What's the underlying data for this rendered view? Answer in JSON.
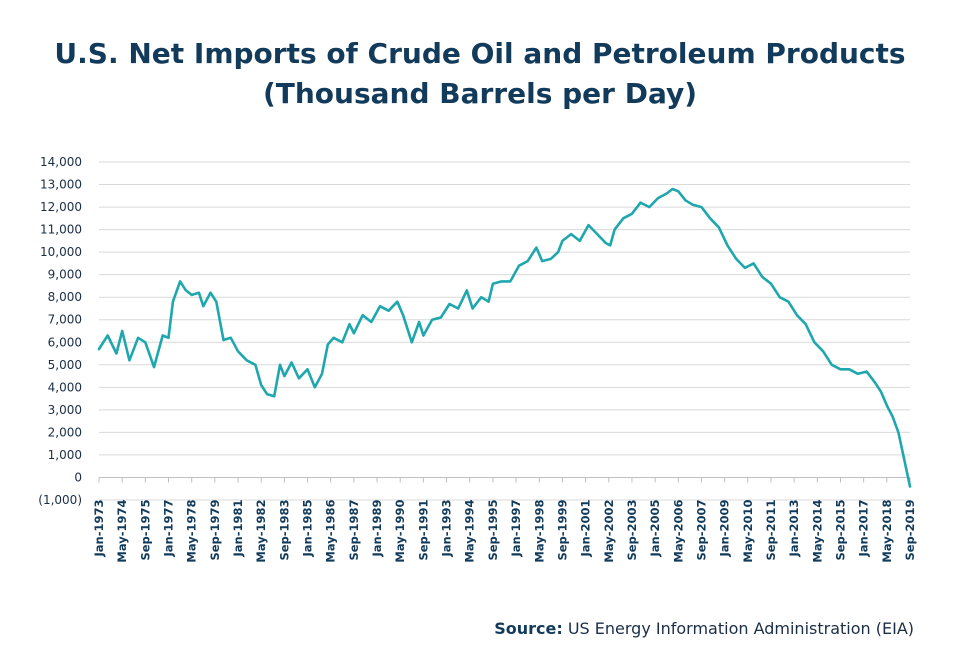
{
  "chart_data": {
    "type": "line",
    "title_line1": "U.S. Net Imports of Crude Oil and Petroleum Products",
    "title_line2": "(Thousand Barrels per Day)",
    "xlabel": "",
    "ylabel": "",
    "ylim": [
      -1000,
      14000
    ],
    "yticks": [
      14000,
      13000,
      12000,
      11000,
      10000,
      9000,
      8000,
      7000,
      6000,
      5000,
      4000,
      3000,
      2000,
      1000,
      0,
      -1000
    ],
    "ytick_labels": [
      "14,000",
      "13,000",
      "12,000",
      "11,000",
      "10,000",
      "9,000",
      "8,000",
      "7,000",
      "6,000",
      "5,000",
      "4,000",
      "3,000",
      "2,000",
      "1,000",
      "0",
      "(1,000)"
    ],
    "xticks": [
      "Jan-1973",
      "May-1974",
      "Sep-1975",
      "Jan-1977",
      "May-1978",
      "Sep-1979",
      "Jan-1981",
      "May-1982",
      "Sep-1983",
      "Jan-1985",
      "May-1986",
      "Sep-1987",
      "Jan-1989",
      "May-1990",
      "Sep-1991",
      "Jan-1993",
      "May-1994",
      "Sep-1995",
      "Jan-1997",
      "May-1998",
      "Sep-1999",
      "Jan-2001",
      "May-2002",
      "Sep-2003",
      "Jan-2005",
      "May-2006",
      "Sep-2007",
      "Jan-2009",
      "May-2010",
      "Sep-2011",
      "Jan-2013",
      "May-2014",
      "Sep-2015",
      "Jan-2017",
      "May-2018",
      "Sep-2019"
    ],
    "grid": true,
    "line_color": "#1fa7ae",
    "series": [
      {
        "x": [
          "1973-01",
          "1973-07",
          "1974-01",
          "1974-05",
          "1974-10",
          "1975-04",
          "1975-09",
          "1976-03",
          "1976-09",
          "1977-01",
          "1977-04",
          "1977-09",
          "1978-01",
          "1978-05",
          "1978-10",
          "1979-01",
          "1979-06",
          "1979-10",
          "1980-03",
          "1980-08",
          "1981-01",
          "1981-07",
          "1982-01",
          "1982-05",
          "1982-09",
          "1983-02",
          "1983-06",
          "1983-09",
          "1984-02",
          "1984-07",
          "1985-01",
          "1985-06",
          "1985-11",
          "1986-03",
          "1986-07",
          "1987-01",
          "1987-06",
          "1987-09",
          "1988-03",
          "1988-09",
          "1989-03",
          "1989-09",
          "1990-03",
          "1990-07",
          "1991-01",
          "1991-06",
          "1991-09",
          "1992-03",
          "1992-09",
          "1993-03",
          "1993-09",
          "1994-03",
          "1994-07",
          "1995-01",
          "1995-06",
          "1995-09",
          "1996-03",
          "1996-09",
          "1997-03",
          "1997-09",
          "1998-03",
          "1998-07",
          "1999-01",
          "1999-06",
          "1999-09",
          "2000-03",
          "2000-09",
          "2001-03",
          "2001-09",
          "2002-03",
          "2002-06",
          "2002-09",
          "2003-03",
          "2003-09",
          "2004-03",
          "2004-09",
          "2005-03",
          "2005-09",
          "2006-01",
          "2006-05",
          "2006-10",
          "2007-03",
          "2007-09",
          "2008-03",
          "2008-09",
          "2009-03",
          "2009-09",
          "2010-03",
          "2010-09",
          "2011-03",
          "2011-09",
          "2012-03",
          "2012-09",
          "2013-03",
          "2013-09",
          "2014-03",
          "2014-09",
          "2015-03",
          "2015-09",
          "2016-03",
          "2016-09",
          "2017-03",
          "2017-09",
          "2018-01",
          "2018-05",
          "2018-09",
          "2019-01",
          "2019-05",
          "2019-09"
        ],
        "values": [
          5700,
          6300,
          5500,
          6500,
          5200,
          6200,
          6000,
          4900,
          6300,
          6200,
          7800,
          8700,
          8300,
          8100,
          8200,
          7600,
          8200,
          7800,
          6100,
          6200,
          5600,
          5200,
          5000,
          4100,
          3700,
          3600,
          5000,
          4500,
          5100,
          4400,
          4800,
          4000,
          4600,
          5900,
          6200,
          6000,
          6800,
          6400,
          7200,
          6900,
          7600,
          7400,
          7800,
          7200,
          6000,
          6900,
          6300,
          7000,
          7100,
          7700,
          7500,
          8300,
          7500,
          8000,
          7800,
          8600,
          8700,
          8700,
          9400,
          9600,
          10200,
          9600,
          9700,
          10000,
          10500,
          10800,
          10500,
          11200,
          10800,
          10400,
          10300,
          11000,
          11500,
          11700,
          12200,
          12000,
          12400,
          12600,
          12800,
          12700,
          12300,
          12100,
          12000,
          11500,
          11100,
          10300,
          9700,
          9300,
          9500,
          8900,
          8600,
          8000,
          7800,
          7200,
          6800,
          6000,
          5600,
          5000,
          4800,
          4800,
          4600,
          4700,
          4200,
          3800,
          3200,
          2700,
          2000,
          800,
          -400
        ]
      }
    ],
    "source_label": "Source:",
    "source_text": " US Energy Information Administration (EIA)"
  }
}
